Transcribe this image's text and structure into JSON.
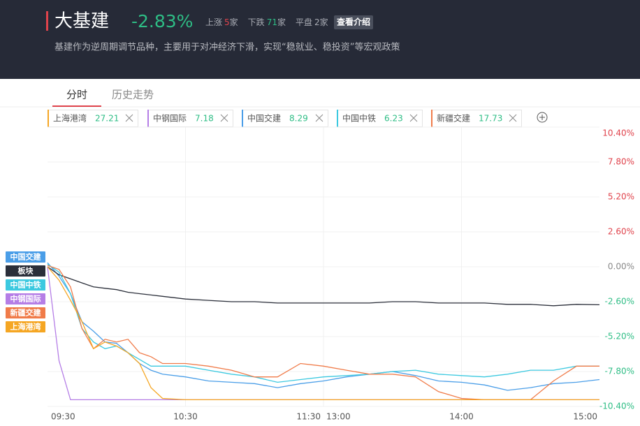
{
  "header": {
    "title": "大基建",
    "change": "-2.83%",
    "stats": [
      {
        "label": "上涨",
        "count": 5,
        "unit": "家"
      },
      {
        "label": "下跌",
        "count": 71,
        "unit": "家"
      },
      {
        "label": "平盘",
        "count": 2,
        "unit": "家"
      }
    ],
    "button": "查看介绍",
    "description": "基建作为逆周期调节品种，主要用于对冲经济下滑，实现“稳就业、稳投资”等宏观政策"
  },
  "tabs": [
    "分时",
    "历史走势"
  ],
  "watchlist": [
    {
      "name": "上海港湾",
      "price": "27.21",
      "color": "#f5a623"
    },
    {
      "name": "中钢国际",
      "price": "7.18",
      "color": "#b57ee6"
    },
    {
      "name": "中国交建",
      "price": "8.29",
      "color": "#4a9ee8"
    },
    {
      "name": "中国中铁",
      "price": "6.23",
      "color": "#3cc9e0"
    },
    {
      "name": "新疆交建",
      "price": "17.73",
      "color": "#f07b49"
    }
  ],
  "chart_data": {
    "type": "line",
    "x": [
      "09:30",
      "09:35",
      "09:40",
      "09:45",
      "09:50",
      "09:55",
      "10:00",
      "10:05",
      "10:10",
      "10:15",
      "10:20",
      "10:30",
      "10:40",
      "10:50",
      "11:00",
      "11:10",
      "11:20",
      "11:30",
      "13:10",
      "13:20",
      "13:30",
      "13:40",
      "13:50",
      "14:00",
      "14:10",
      "14:20",
      "14:30",
      "14:40",
      "14:50",
      "15:00"
    ],
    "series": [
      {
        "name": "中国交建",
        "color": "#4a9ee8",
        "values": [
          0.3,
          -0.7,
          -2.0,
          -4.1,
          -4.8,
          -5.6,
          -5.7,
          -6.4,
          -7.2,
          -7.7,
          -8.0,
          -8.2,
          -8.5,
          -8.6,
          -8.7,
          -9.0,
          -8.7,
          -8.5,
          -8.2,
          -8.0,
          -7.8,
          -8.1,
          -8.5,
          -8.6,
          -8.8,
          -9.2,
          -9.0,
          -8.7,
          -8.6,
          -8.4
        ]
      },
      {
        "name": "板块",
        "color": "#2b2f3a",
        "values": [
          0,
          -0.6,
          -0.9,
          -1.2,
          -1.5,
          -1.6,
          -1.7,
          -1.9,
          -2.0,
          -2.1,
          -2.2,
          -2.4,
          -2.5,
          -2.6,
          -2.6,
          -2.7,
          -2.7,
          -2.7,
          -2.7,
          -2.7,
          -2.6,
          -2.6,
          -2.7,
          -2.7,
          -2.7,
          -2.8,
          -2.8,
          -2.9,
          -2.8,
          -2.83
        ]
      },
      {
        "name": "中国中铁",
        "color": "#3cc9e0",
        "values": [
          0.2,
          -0.4,
          -2.0,
          -4.6,
          -5.6,
          -6.1,
          -5.9,
          -6.4,
          -6.9,
          -7.4,
          -7.4,
          -7.4,
          -7.7,
          -8.0,
          -8.2,
          -8.6,
          -8.4,
          -8.2,
          -8.1,
          -8.0,
          -7.8,
          -7.7,
          -8.0,
          -8.1,
          -8.2,
          -8.0,
          -7.7,
          -7.7,
          -7.4,
          -7.4
        ]
      },
      {
        "name": "中钢国际",
        "color": "#b57ee6",
        "values": [
          0,
          -7.0,
          -9.9,
          -9.9,
          -9.9,
          -9.9,
          -9.9,
          -9.9,
          -9.9,
          -9.9,
          -9.9,
          -9.9,
          -9.9,
          -9.9,
          -9.9,
          -9.9,
          -9.9,
          -9.9,
          -9.9,
          -9.9,
          -9.9,
          -9.9,
          -9.9,
          -9.9,
          -9.9,
          -9.9,
          -9.9,
          -9.9,
          -9.9,
          -9.9
        ]
      },
      {
        "name": "新疆交建",
        "color": "#f07b49",
        "values": [
          0.1,
          -0.2,
          -1.5,
          -4.6,
          -6.1,
          -5.4,
          -5.6,
          -5.4,
          -6.4,
          -6.7,
          -7.2,
          -7.2,
          -7.4,
          -7.7,
          -8.2,
          -8.2,
          -7.2,
          -7.4,
          -7.7,
          -8.0,
          -8.0,
          -8.2,
          -9.3,
          -9.8,
          -9.9,
          -9.9,
          -9.9,
          -8.5,
          -7.4,
          -7.4
        ]
      },
      {
        "name": "上海港湾",
        "color": "#f5a623",
        "values": [
          0,
          -1.0,
          -2.5,
          -4.1,
          -6.1,
          -5.6,
          -5.9,
          -6.4,
          -7.2,
          -9.0,
          -9.8,
          -9.9,
          -9.9,
          -9.9,
          -9.9,
          -9.9,
          -9.9,
          -9.9,
          -9.9,
          -9.9,
          -9.9,
          -9.9,
          -9.9,
          -9.9,
          -9.9,
          -9.9,
          -9.9,
          -9.9,
          -9.9,
          -9.9
        ]
      }
    ],
    "ylim": [
      -10.4,
      10.4
    ],
    "yticks": [
      {
        "value": 10.4,
        "label": "10.40%"
      },
      {
        "value": 7.8,
        "label": "7.80%"
      },
      {
        "value": 5.2,
        "label": "5.20%"
      },
      {
        "value": 2.6,
        "label": "2.60%"
      },
      {
        "value": 0,
        "label": "0.00%"
      },
      {
        "value": -2.6,
        "label": "-2.60%"
      },
      {
        "value": -5.2,
        "label": "-5.20%"
      },
      {
        "value": -7.8,
        "label": "-7.80%"
      },
      {
        "value": -10.4,
        "label": "-10.40%"
      }
    ],
    "xticks": [
      "09:30",
      "10:30",
      "11:30",
      "13:00",
      "14:00",
      "15:00"
    ],
    "grid": true
  }
}
